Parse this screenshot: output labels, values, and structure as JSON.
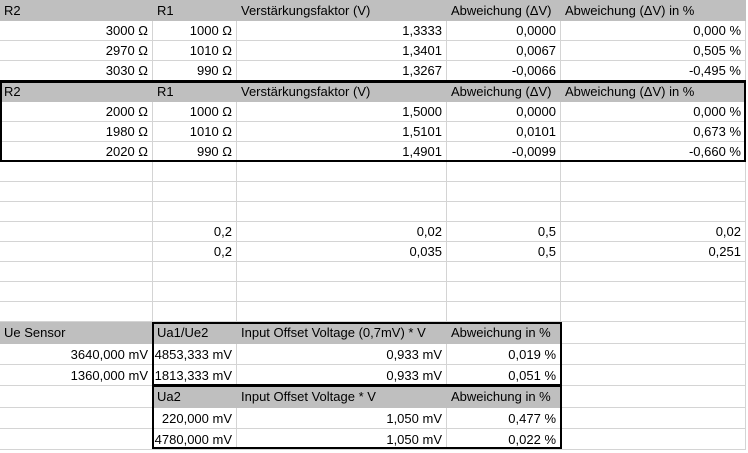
{
  "table1": {
    "headers": [
      "R2",
      "R1",
      "Verstärkungsfaktor (V)",
      "Abweichung (ΔV)",
      "Abweichung (ΔV) in %"
    ],
    "rows": [
      [
        "3000 Ω",
        "1000 Ω",
        "1,3333",
        "0,0000",
        "0,000 %"
      ],
      [
        "2970 Ω",
        "1010 Ω",
        "1,3401",
        "0,0067",
        "0,505 %"
      ],
      [
        "3030 Ω",
        "990 Ω",
        "1,3267",
        "-0,0066",
        "-0,495 %"
      ]
    ]
  },
  "table2": {
    "headers": [
      "R2",
      "R1",
      "Verstärkungsfaktor (V)",
      "Abweichung (ΔV)",
      "Abweichung (ΔV) in %"
    ],
    "rows": [
      [
        "2000 Ω",
        "1000 Ω",
        "1,5000",
        "0,0000",
        "0,000 %"
      ],
      [
        "1980 Ω",
        "1010 Ω",
        "1,5101",
        "0,0101",
        "0,673 %"
      ],
      [
        "2020 Ω",
        "990 Ω",
        "1,4901",
        "-0,0099",
        "-0,660 %"
      ]
    ]
  },
  "values_block": {
    "rows": [
      [
        "0,2",
        "0,02",
        "0,5",
        "0,02"
      ],
      [
        "0,2",
        "0,035",
        "0,5",
        "0,251"
      ]
    ]
  },
  "sensor": {
    "label": "Ue Sensor",
    "table_a": {
      "headers": [
        "Ua1/Ue2",
        "Input Offset Voltage (0,7mV) * V",
        "Abweichung in %"
      ],
      "rows": [
        [
          "3640,000 mV",
          "4853,333 mV",
          "0,933 mV",
          "0,019 %"
        ],
        [
          "1360,000 mV",
          "1813,333 mV",
          "0,933 mV",
          "0,051 %"
        ]
      ]
    },
    "table_b": {
      "headers": [
        "Ua2",
        "Input Offset Voltage * V",
        "Abweichung in %"
      ],
      "rows": [
        [
          "220,000 mV",
          "1,050 mV",
          "0,477 %"
        ],
        [
          "4780,000 mV",
          "1,050 mV",
          "0,022 %"
        ]
      ]
    }
  }
}
